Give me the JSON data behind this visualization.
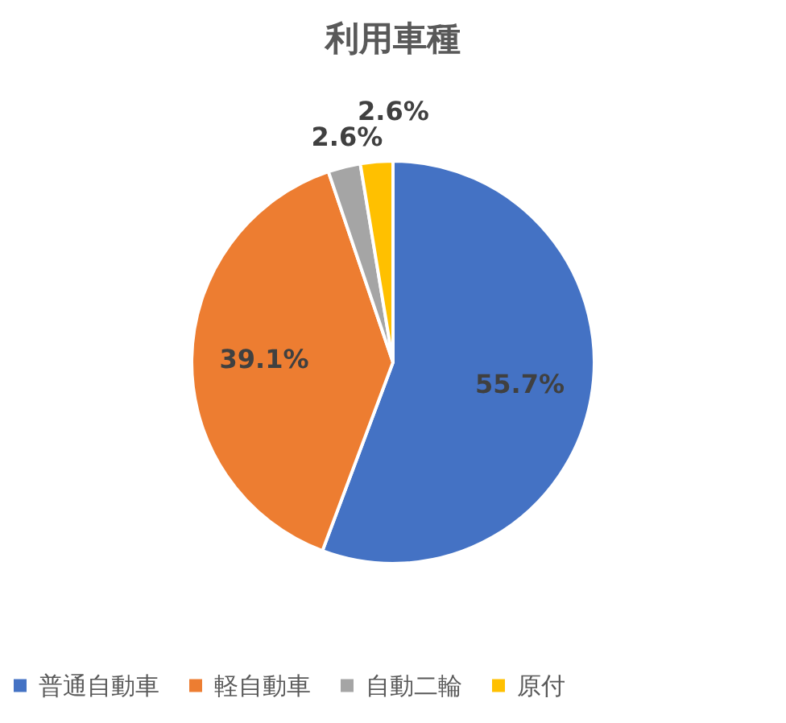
{
  "chart_data": {
    "type": "pie",
    "title": "利用車種",
    "categories": [
      "普通自動車",
      "軽自動車",
      "自動二輪",
      "原付"
    ],
    "values": [
      55.7,
      39.1,
      2.6,
      2.6
    ],
    "colors": [
      "#4472c4",
      "#ed7d31",
      "#a5a5a5",
      "#ffc000"
    ],
    "value_labels": [
      "55.7%",
      "39.1%",
      "2.6%",
      "2.6%"
    ],
    "legend": "bottom"
  }
}
